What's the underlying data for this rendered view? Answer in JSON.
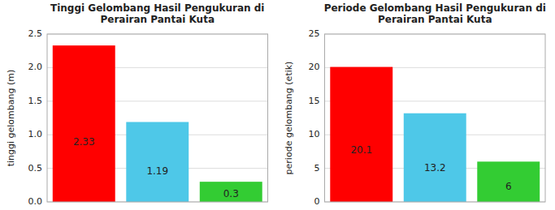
{
  "chart_data": [
    {
      "type": "bar",
      "title": "Tinggi Gelombang Hasil Pengukuran di\nPerairan Pantai Kuta",
      "ylabel": "tinggi gelombang (m)",
      "categories": [
        null,
        null,
        null
      ],
      "values": [
        2.33,
        1.19,
        0.3
      ],
      "colors": [
        "#FF0000",
        "#4EC8E8",
        "#33CC33"
      ],
      "ylim": [
        0,
        2.5
      ],
      "yticks": [
        {
          "value": 0,
          "label": "0.0"
        },
        0.5,
        {
          "value": 1.0,
          "label": "1.0"
        },
        1.5,
        {
          "value": 2.0,
          "label": "2.0"
        },
        2.5
      ],
      "grid": true,
      "data_labels": true,
      "tick_labels": "y"
    },
    {
      "type": "bar",
      "title": "Periode Gelombang Hasil Pengukuran di\nPerairan Pantai Kuta",
      "ylabel": "periode gelombang (etik)",
      "categories": [
        null,
        null,
        null
      ],
      "values": [
        20.1,
        13.2,
        6
      ],
      "colors": [
        "#FF0000",
        "#4EC8E8",
        "#33CC33"
      ],
      "ylim": [
        0,
        25
      ],
      "yticks": [
        0,
        5,
        10,
        15,
        20,
        25
      ],
      "grid": true,
      "data_labels": true,
      "tick_labels": "y"
    }
  ]
}
